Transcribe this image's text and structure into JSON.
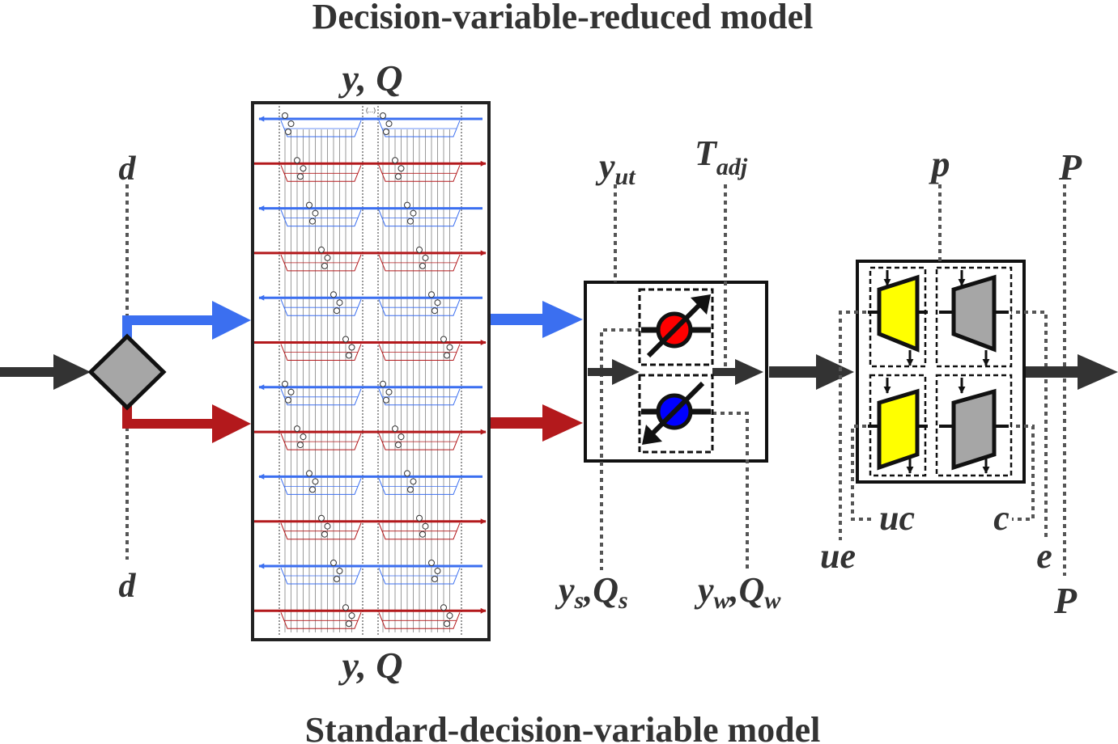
{
  "titles": {
    "top": "Decision-variable-reduced model",
    "bottom": "Standard-decision-variable model"
  },
  "labels": {
    "d_top": "d",
    "d_bottom": "d",
    "yq_top": {
      "main": "y, Q"
    },
    "yq_bottom": {
      "main": "y, Q"
    },
    "y_ut": {
      "main": "y",
      "sub": "ut"
    },
    "t_adj": {
      "main": "T",
      "sub": "adj"
    },
    "ys_qs": {
      "a": "y",
      "a_sub": "s",
      "b": ",Q",
      "b_sub": "s"
    },
    "yw_qw": {
      "a": "y",
      "a_sub": "w",
      "b": ",Q",
      "b_sub": "w"
    },
    "p_lower": "p",
    "p_upper_top": "P",
    "p_upper_bottom": "P",
    "uc": "uc",
    "c": "c",
    "ue": "ue",
    "e": "e",
    "ellipsis": "(...)"
  },
  "network": {
    "rows": [
      "blue",
      "red",
      "blue",
      "red",
      "blue",
      "red",
      "blue",
      "red",
      "blue",
      "red",
      "blue",
      "red"
    ]
  },
  "colors": {
    "blue": "#3b6ff0",
    "red": "#b3191c",
    "dark": "#333333",
    "gray": "#a6a6a6",
    "yellow": "#ffff00",
    "node_red": "#ff0000",
    "node_blue": "#0000ff"
  }
}
